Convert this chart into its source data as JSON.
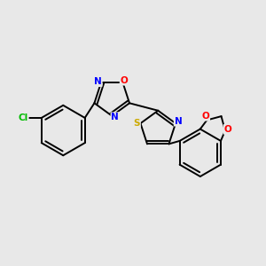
{
  "background_color": "#e8e8e8",
  "bond_color": "#000000",
  "bond_width": 1.4,
  "atom_colors": {
    "N": "#0000ff",
    "O": "#ff0000",
    "S": "#ccaa00",
    "Cl": "#00bb00",
    "C": "#000000"
  },
  "font_size": 7.5,
  "figsize": [
    3.0,
    3.0
  ],
  "dpi": 100
}
